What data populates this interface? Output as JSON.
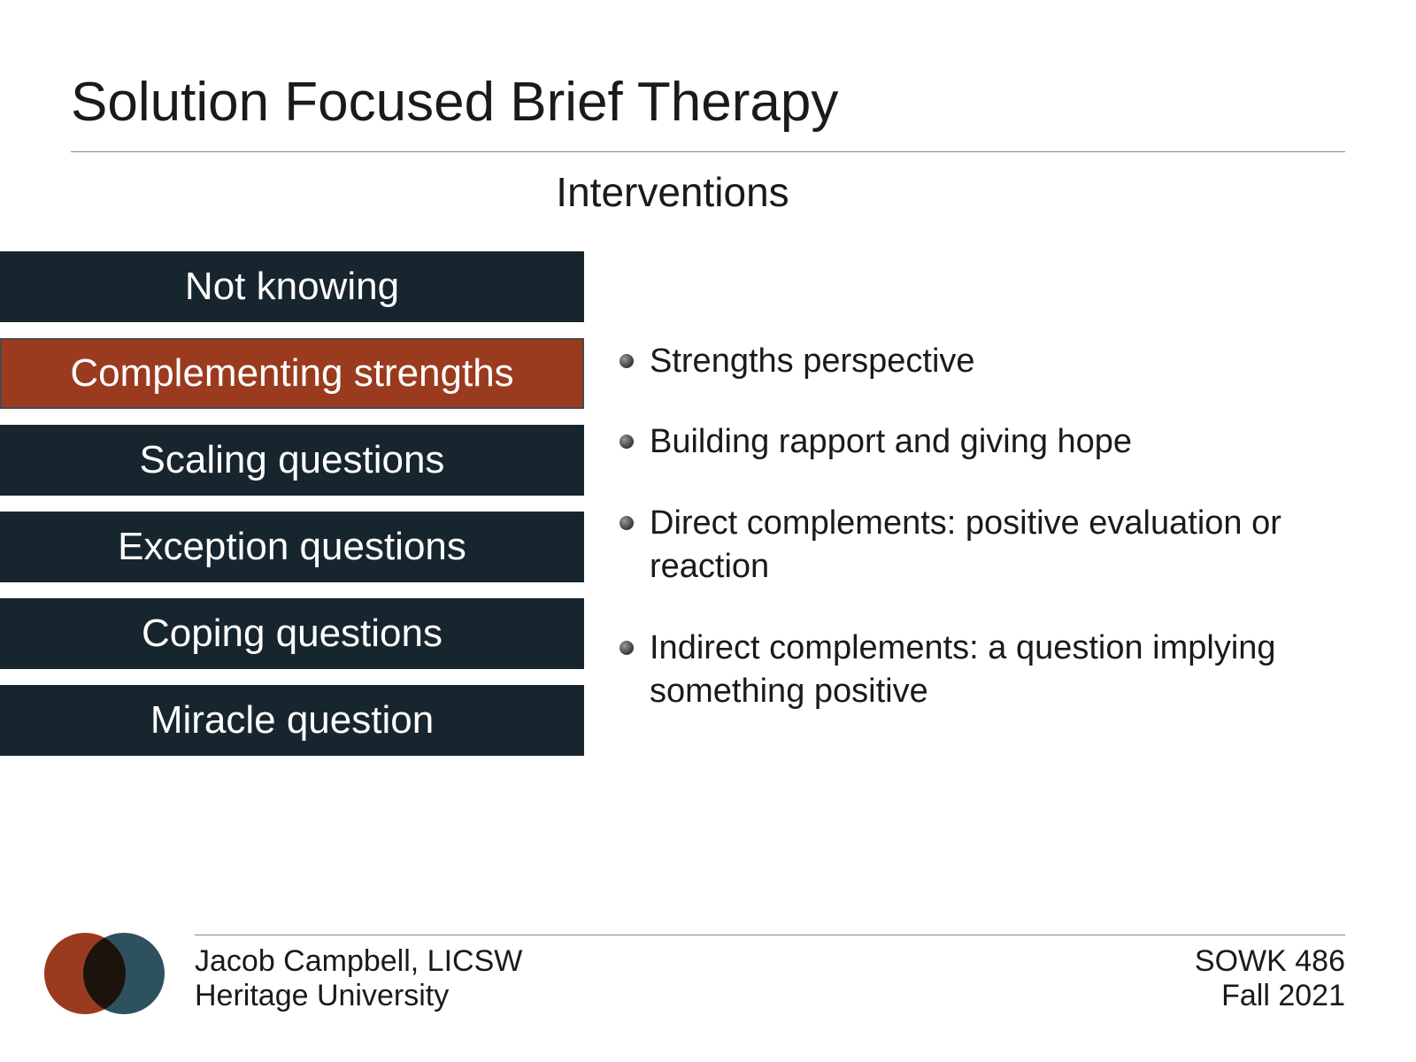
{
  "title": "Solution Focused Brief Therapy",
  "subtitle": "Interventions",
  "colors": {
    "pill_dark": "#17252e",
    "pill_highlight": "#9a3b1f",
    "venn_left": "#9a3b1f",
    "venn_right": "#2e5160",
    "text": "#1a1a1a",
    "rule": "#888888",
    "background": "#ffffff"
  },
  "typography": {
    "title_fontsize": 62,
    "subtitle_fontsize": 46,
    "pill_fontsize": 44,
    "bullet_fontsize": 38,
    "footer_fontsize": 34,
    "font_weight": 300
  },
  "pills": [
    {
      "label": "Not knowing",
      "highlighted": false
    },
    {
      "label": "Complementing strengths",
      "highlighted": true
    },
    {
      "label": "Scaling questions",
      "highlighted": false
    },
    {
      "label": "Exception questions",
      "highlighted": false
    },
    {
      "label": "Coping questions",
      "highlighted": false
    },
    {
      "label": "Miracle question",
      "highlighted": false
    }
  ],
  "bullets": [
    "Strengths perspective",
    "Building rapport and giving hope",
    "Direct complements:  positive evaluation or reaction",
    "Indirect complements: a question implying something positive"
  ],
  "footer": {
    "author": "Jacob Campbell, LICSW",
    "institution": "Heritage University",
    "course": "SOWK 486",
    "term": "Fall 2021"
  }
}
